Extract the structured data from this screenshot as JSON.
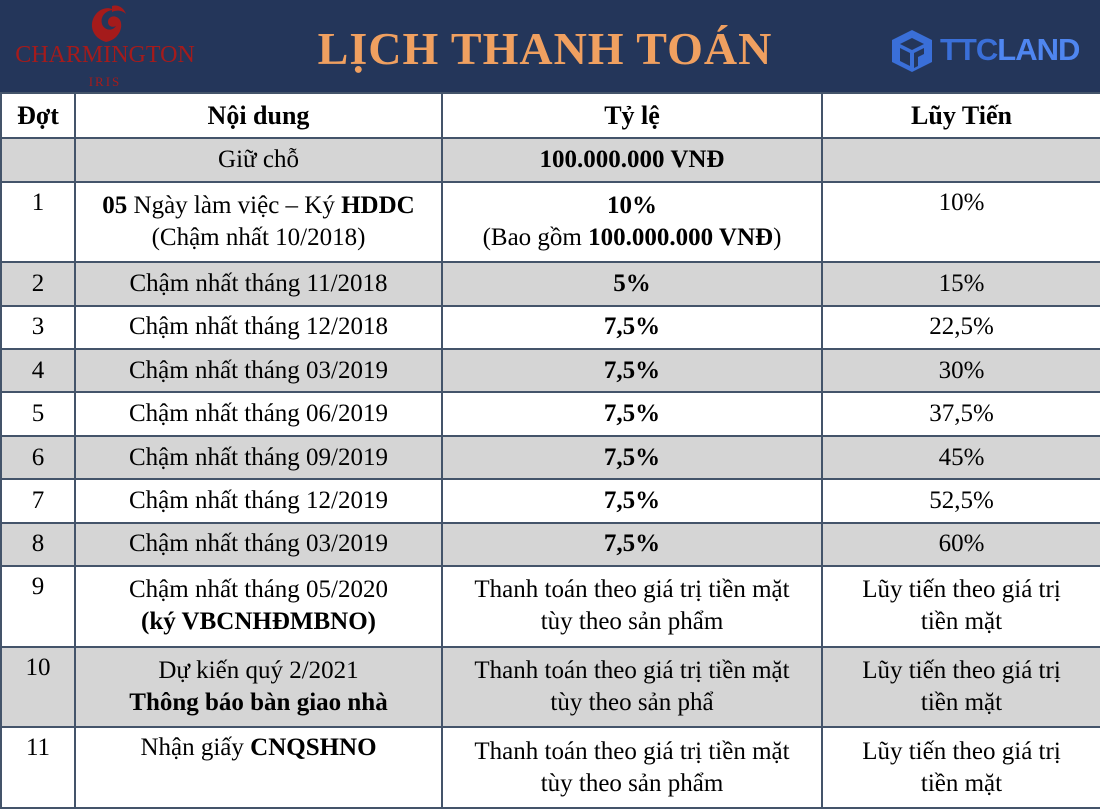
{
  "header": {
    "title": "LỊCH THANH TOÁN",
    "left_logo": {
      "brand": "CHARMINGTON",
      "sub": "IRIS",
      "color": "#a51b1b"
    },
    "right_logo": {
      "part1": "TTC",
      "part2": "LAND",
      "icon": "ttc-cube-icon",
      "color": "#3a6fd8"
    },
    "background_color": "#24365a",
    "title_color": "#f0a060"
  },
  "table": {
    "columns": [
      "Đợt",
      "Nội dung",
      "Tỷ lệ",
      "Lũy Tiến"
    ],
    "rows": [
      {
        "dot": "",
        "noi_dung": "Giữ chỗ",
        "noi_dung_bold": "",
        "noi_dung_line2": "",
        "ty_le": "100.000.000 VNĐ",
        "ty_le_line2_pre": "",
        "ty_le_line2_bold": "",
        "ty_le_line2_post": "",
        "luy_tien": "",
        "luy_tien_line2": ""
      },
      {
        "dot": "1",
        "noi_dung_pre": "05",
        "noi_dung": " Ngày làm việc – Ký ",
        "noi_dung_bold": "HDDC",
        "noi_dung_line2": "(Chậm nhất 10/2018)",
        "ty_le": "10%",
        "ty_le_line2_pre": "(Bao gồm ",
        "ty_le_line2_bold": "100.000.000 VNĐ",
        "ty_le_line2_post": ")",
        "luy_tien": "10%",
        "luy_tien_line2": ""
      },
      {
        "dot": "2",
        "noi_dung": "Chậm nhất tháng 11/2018",
        "ty_le": "5%",
        "luy_tien": "15%"
      },
      {
        "dot": "3",
        "noi_dung": "Chậm nhất tháng 12/2018",
        "ty_le": "7,5%",
        "luy_tien": "22,5%"
      },
      {
        "dot": "4",
        "noi_dung": "Chậm nhất tháng 03/2019",
        "ty_le": "7,5%",
        "luy_tien": "30%"
      },
      {
        "dot": "5",
        "noi_dung": "Chậm nhất tháng 06/2019",
        "ty_le": "7,5%",
        "luy_tien": "37,5%"
      },
      {
        "dot": "6",
        "noi_dung": "Chậm nhất tháng 09/2019",
        "ty_le": "7,5%",
        "luy_tien": "45%"
      },
      {
        "dot": "7",
        "noi_dung": "Chậm nhất tháng 12/2019",
        "ty_le": "7,5%",
        "luy_tien": "52,5%"
      },
      {
        "dot": "8",
        "noi_dung": "Chậm nhất tháng 03/2019",
        "ty_le": "7,5%",
        "luy_tien": "60%"
      },
      {
        "dot": "9",
        "noi_dung": "Chậm nhất tháng 05/2020",
        "noi_dung_line2": "(ký VBCNHĐMBNO)",
        "ty_le": "Thanh toán theo giá trị tiền mặt",
        "ty_le_line2": "tùy theo sản phẩm",
        "luy_tien": "Lũy tiến theo giá trị",
        "luy_tien_line2": "tiền mặt"
      },
      {
        "dot": "10",
        "noi_dung": "Dự kiến quý 2/2021",
        "noi_dung_line2": "Thông báo bàn giao nhà",
        "ty_le": "Thanh toán theo giá trị tiền mặt",
        "ty_le_line2": "tùy theo sản phẩ",
        "luy_tien": "Lũy tiến theo giá trị",
        "luy_tien_line2": "tiền mặt"
      },
      {
        "dot": "11",
        "noi_dung_pre": "Nhận giấy ",
        "noi_dung_bold": "CNQSHNO",
        "ty_le": "Thanh toán theo giá trị tiền mặt",
        "ty_le_line2": "tùy theo sản phẩm",
        "luy_tien": "Lũy tiến theo giá trị",
        "luy_tien_line2": "tiền mặt"
      }
    ]
  }
}
